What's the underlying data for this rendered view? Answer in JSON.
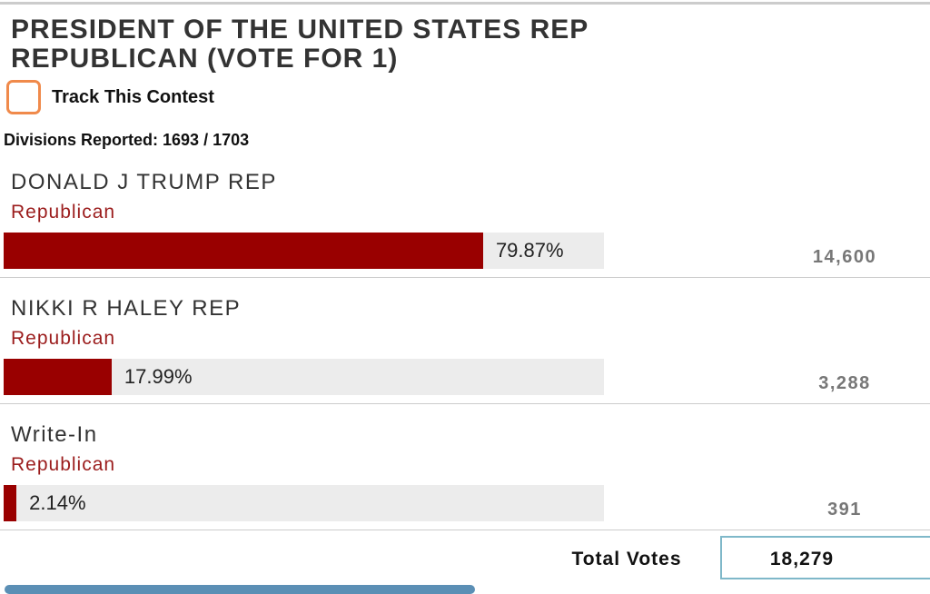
{
  "title_line1": "PRESIDENT OF THE UNITED STATES REP",
  "title_line2": "REPUBLICAN (VOTE FOR 1)",
  "track_label": "Track This Contest",
  "divisions": "Divisions Reported: 1693 / 1703",
  "candidates": [
    {
      "name": "DONALD J TRUMP REP",
      "party": "Republican",
      "percent": 79.87,
      "percent_label": "79.87%",
      "votes": "14,600"
    },
    {
      "name": "NIKKI R HALEY REP",
      "party": "Republican",
      "percent": 17.99,
      "percent_label": "17.99%",
      "votes": "3,288"
    },
    {
      "name": "Write-In",
      "party": "Republican",
      "percent": 2.14,
      "percent_label": "2.14%",
      "votes": "391"
    }
  ],
  "total_label": "Total Votes",
  "total_votes": "18,279"
}
